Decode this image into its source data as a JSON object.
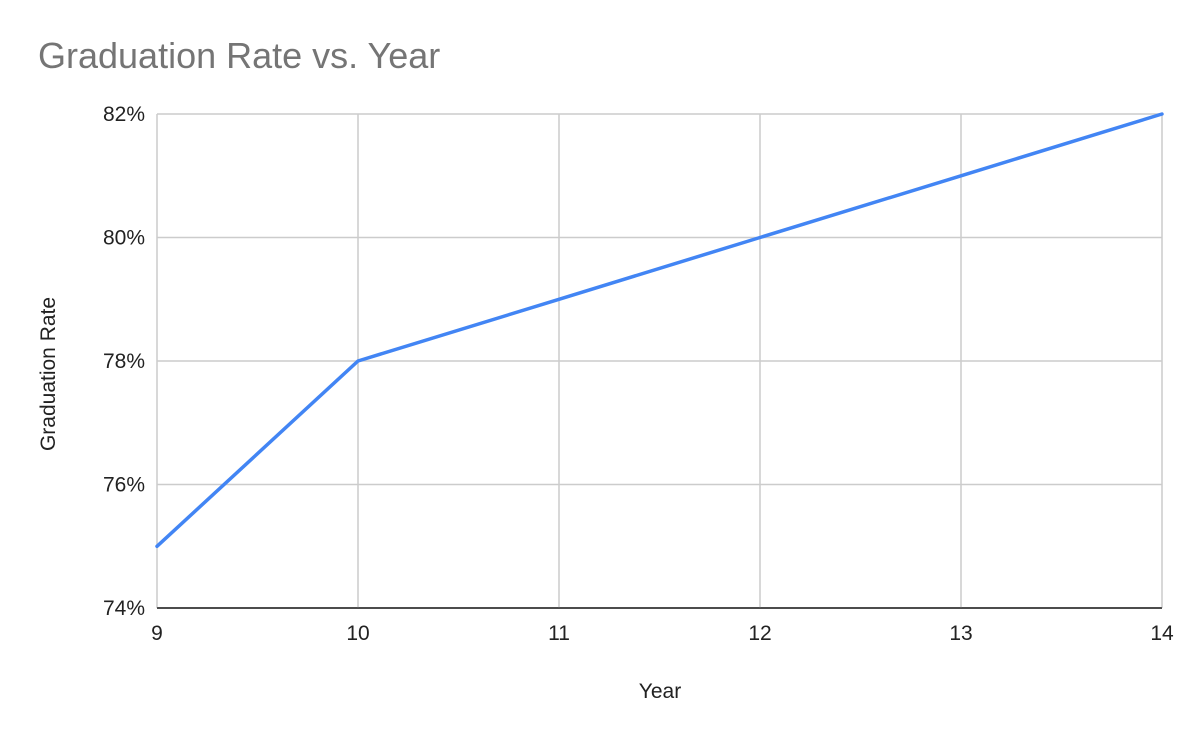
{
  "chart_data": {
    "type": "line",
    "title": "Graduation Rate vs. Year",
    "xlabel": "Year",
    "ylabel": "Graduation Rate",
    "x": [
      9,
      10,
      11,
      12,
      13,
      14
    ],
    "series": [
      {
        "values": [
          75,
          78,
          79,
          80,
          81,
          82
        ],
        "color": "#4285f4"
      }
    ],
    "xlim": [
      9,
      14
    ],
    "ylim": [
      74,
      82
    ],
    "x_ticks": [
      "9",
      "10",
      "11",
      "12",
      "13",
      "14"
    ],
    "y_ticks": [
      "74%",
      "76%",
      "78%",
      "80%",
      "82%"
    ],
    "y_tick_values": [
      74,
      76,
      78,
      80,
      82
    ],
    "grid": true,
    "legend": "none"
  }
}
